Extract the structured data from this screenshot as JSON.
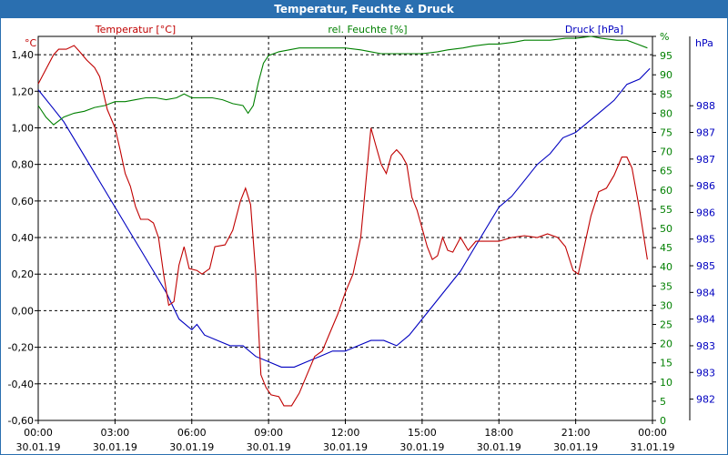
{
  "chart_data": {
    "type": "line",
    "title": "Temperatur, Feuchte & Druck",
    "colors": {
      "temp": "#c00000",
      "hum": "#008000",
      "press": "#0000c0",
      "titlebar": "#2a6fb0",
      "grid": "#000000"
    },
    "series": [
      {
        "key": "temp",
        "name": "Temperatur [°C]",
        "unit_label": "°C",
        "points": [
          [
            0,
            1.24
          ],
          [
            0.3,
            1.32
          ],
          [
            0.6,
            1.4
          ],
          [
            0.8,
            1.43
          ],
          [
            1.1,
            1.43
          ],
          [
            1.4,
            1.45
          ],
          [
            1.6,
            1.42
          ],
          [
            1.9,
            1.37
          ],
          [
            2.2,
            1.33
          ],
          [
            2.4,
            1.28
          ],
          [
            2.7,
            1.1
          ],
          [
            3.0,
            1.0
          ],
          [
            3.2,
            0.88
          ],
          [
            3.4,
            0.75
          ],
          [
            3.6,
            0.68
          ],
          [
            3.8,
            0.57
          ],
          [
            4.0,
            0.5
          ],
          [
            4.3,
            0.5
          ],
          [
            4.5,
            0.48
          ],
          [
            4.7,
            0.4
          ],
          [
            4.9,
            0.2
          ],
          [
            5.1,
            0.03
          ],
          [
            5.3,
            0.05
          ],
          [
            5.5,
            0.25
          ],
          [
            5.7,
            0.35
          ],
          [
            5.9,
            0.23
          ],
          [
            6.2,
            0.22
          ],
          [
            6.4,
            0.2
          ],
          [
            6.7,
            0.23
          ],
          [
            6.9,
            0.35
          ],
          [
            7.3,
            0.36
          ],
          [
            7.6,
            0.44
          ],
          [
            7.9,
            0.6
          ],
          [
            8.1,
            0.67
          ],
          [
            8.3,
            0.58
          ],
          [
            8.5,
            0.2
          ],
          [
            8.7,
            -0.35
          ],
          [
            8.9,
            -0.42
          ],
          [
            9.1,
            -0.46
          ],
          [
            9.4,
            -0.47
          ],
          [
            9.6,
            -0.52
          ],
          [
            9.9,
            -0.52
          ],
          [
            10.2,
            -0.45
          ],
          [
            10.5,
            -0.35
          ],
          [
            10.8,
            -0.25
          ],
          [
            11.1,
            -0.22
          ],
          [
            11.4,
            -0.12
          ],
          [
            11.7,
            -0.02
          ],
          [
            12.0,
            0.1
          ],
          [
            12.3,
            0.2
          ],
          [
            12.6,
            0.4
          ],
          [
            12.8,
            0.7
          ],
          [
            13.0,
            1.0
          ],
          [
            13.2,
            0.9
          ],
          [
            13.4,
            0.8
          ],
          [
            13.6,
            0.75
          ],
          [
            13.8,
            0.85
          ],
          [
            14.0,
            0.88
          ],
          [
            14.2,
            0.85
          ],
          [
            14.4,
            0.8
          ],
          [
            14.6,
            0.62
          ],
          [
            14.8,
            0.55
          ],
          [
            15.0,
            0.45
          ],
          [
            15.2,
            0.35
          ],
          [
            15.4,
            0.28
          ],
          [
            15.6,
            0.3
          ],
          [
            15.8,
            0.4
          ],
          [
            16.0,
            0.33
          ],
          [
            16.2,
            0.32
          ],
          [
            16.5,
            0.4
          ],
          [
            16.8,
            0.33
          ],
          [
            17.1,
            0.38
          ],
          [
            17.4,
            0.38
          ],
          [
            17.7,
            0.38
          ],
          [
            18.0,
            0.38
          ],
          [
            18.5,
            0.4
          ],
          [
            19.0,
            0.41
          ],
          [
            19.5,
            0.4
          ],
          [
            19.9,
            0.42
          ],
          [
            20.3,
            0.4
          ],
          [
            20.6,
            0.35
          ],
          [
            20.9,
            0.22
          ],
          [
            21.1,
            0.2
          ],
          [
            21.3,
            0.33
          ],
          [
            21.6,
            0.52
          ],
          [
            21.9,
            0.65
          ],
          [
            22.2,
            0.67
          ],
          [
            22.5,
            0.74
          ],
          [
            22.8,
            0.84
          ],
          [
            23.0,
            0.84
          ],
          [
            23.2,
            0.78
          ],
          [
            23.5,
            0.55
          ],
          [
            23.8,
            0.28
          ]
        ],
        "ylim": [
          -0.6,
          1.5
        ],
        "ticks": [
          -0.6,
          -0.4,
          -0.2,
          0,
          0.2,
          0.4,
          0.6,
          0.8,
          1.0,
          1.2,
          1.4
        ],
        "tick_labels": [
          "-0,60",
          "-0,40",
          "-0,20",
          "0,00",
          "0,20",
          "0,40",
          "0,60",
          "0,80",
          "1,00",
          "1,20",
          "1,40"
        ]
      },
      {
        "key": "hum",
        "name": "rel. Feuchte [%]",
        "unit_label": "%",
        "points": [
          [
            0,
            82
          ],
          [
            0.3,
            79
          ],
          [
            0.6,
            77
          ],
          [
            1.0,
            79
          ],
          [
            1.4,
            80
          ],
          [
            1.8,
            80.5
          ],
          [
            2.2,
            81.5
          ],
          [
            2.6,
            82
          ],
          [
            3.0,
            83
          ],
          [
            3.4,
            83
          ],
          [
            3.8,
            83.5
          ],
          [
            4.2,
            84
          ],
          [
            4.6,
            84
          ],
          [
            5.0,
            83.5
          ],
          [
            5.4,
            84
          ],
          [
            5.7,
            85
          ],
          [
            6.0,
            84
          ],
          [
            6.4,
            84
          ],
          [
            6.8,
            84
          ],
          [
            7.2,
            83.5
          ],
          [
            7.6,
            82.5
          ],
          [
            8.0,
            82
          ],
          [
            8.2,
            80
          ],
          [
            8.4,
            82
          ],
          [
            8.6,
            88
          ],
          [
            8.8,
            93
          ],
          [
            9.0,
            95
          ],
          [
            9.4,
            96
          ],
          [
            9.8,
            96.5
          ],
          [
            10.2,
            97
          ],
          [
            10.6,
            97
          ],
          [
            11.0,
            97
          ],
          [
            11.6,
            97
          ],
          [
            12.0,
            97
          ],
          [
            12.6,
            96.5
          ],
          [
            13.0,
            96
          ],
          [
            13.4,
            95.5
          ],
          [
            14.0,
            95.5
          ],
          [
            14.6,
            95.5
          ],
          [
            15.0,
            95.5
          ],
          [
            15.6,
            96
          ],
          [
            16.0,
            96.5
          ],
          [
            16.6,
            97
          ],
          [
            17.0,
            97.5
          ],
          [
            17.6,
            98
          ],
          [
            18.0,
            98
          ],
          [
            18.6,
            98.5
          ],
          [
            19.0,
            99
          ],
          [
            19.6,
            99
          ],
          [
            20.0,
            99
          ],
          [
            20.6,
            99.5
          ],
          [
            21.0,
            99.5
          ],
          [
            21.6,
            100
          ],
          [
            22.0,
            99.5
          ],
          [
            22.6,
            99
          ],
          [
            23.0,
            99
          ],
          [
            23.4,
            98
          ],
          [
            23.8,
            97
          ]
        ],
        "ylim": [
          0,
          100
        ],
        "ticks": [
          0,
          5,
          10,
          15,
          20,
          25,
          30,
          35,
          40,
          45,
          50,
          55,
          60,
          65,
          70,
          75,
          80,
          85,
          90,
          95,
          100
        ],
        "tick_labels": [
          "0",
          "5",
          "10",
          "15",
          "20",
          "25",
          "30",
          "35",
          "40",
          "45",
          "50",
          "55",
          "60",
          "65",
          "70",
          "75",
          "80",
          "85",
          "90",
          "95",
          "%"
        ]
      },
      {
        "key": "press",
        "name": "Druck [hPa]",
        "unit_label": "hPa",
        "points": [
          [
            0,
            987.6
          ],
          [
            0.5,
            987.3
          ],
          [
            1.0,
            987.0
          ],
          [
            1.5,
            986.6
          ],
          [
            2.0,
            986.2
          ],
          [
            2.5,
            985.8
          ],
          [
            3.0,
            985.4
          ],
          [
            3.5,
            985.0
          ],
          [
            4.0,
            984.6
          ],
          [
            4.5,
            984.2
          ],
          [
            5.0,
            983.8
          ],
          [
            5.5,
            983.3
          ],
          [
            6.0,
            983.1
          ],
          [
            6.2,
            983.2
          ],
          [
            6.5,
            983.0
          ],
          [
            7.0,
            982.9
          ],
          [
            7.5,
            982.8
          ],
          [
            8.0,
            982.8
          ],
          [
            8.5,
            982.6
          ],
          [
            9.0,
            982.5
          ],
          [
            9.5,
            982.4
          ],
          [
            10.0,
            982.4
          ],
          [
            10.5,
            982.5
          ],
          [
            11.0,
            982.6
          ],
          [
            11.5,
            982.7
          ],
          [
            12.0,
            982.7
          ],
          [
            12.5,
            982.8
          ],
          [
            13.0,
            982.9
          ],
          [
            13.5,
            982.9
          ],
          [
            14.0,
            982.8
          ],
          [
            14.5,
            983.0
          ],
          [
            15.0,
            983.3
          ],
          [
            15.5,
            983.6
          ],
          [
            16.0,
            983.9
          ],
          [
            16.5,
            984.2
          ],
          [
            17.0,
            984.6
          ],
          [
            17.5,
            985.0
          ],
          [
            18.0,
            985.4
          ],
          [
            18.5,
            985.6
          ],
          [
            19.0,
            985.9
          ],
          [
            19.5,
            986.2
          ],
          [
            20.0,
            986.4
          ],
          [
            20.5,
            986.7
          ],
          [
            21.0,
            986.8
          ],
          [
            21.5,
            987.0
          ],
          [
            22.0,
            987.2
          ],
          [
            22.5,
            987.4
          ],
          [
            23.0,
            987.7
          ],
          [
            23.5,
            987.8
          ],
          [
            23.9,
            988.0
          ]
        ],
        "ylim": [
          981.4,
          988.6
        ],
        "ticks": [
          981.8,
          982.3,
          982.8,
          983.3,
          983.8,
          984.3,
          984.8,
          985.3,
          985.8,
          986.3,
          986.8,
          987.3,
          987.8
        ],
        "tick_labels": [
          "982",
          "983",
          "983",
          "984",
          "984",
          "985",
          "985",
          "986",
          "986",
          "987",
          "987",
          "988"
        ],
        "top_unit": "hPa"
      }
    ],
    "xlim": [
      0,
      24
    ],
    "x_ticks": [
      {
        "x": 0,
        "time": "00:00",
        "date": "30.01.19"
      },
      {
        "x": 3,
        "time": "03:00",
        "date": "30.01.19"
      },
      {
        "x": 6,
        "time": "06:00",
        "date": "30.01.19"
      },
      {
        "x": 9,
        "time": "09:00",
        "date": "30.01.19"
      },
      {
        "x": 12,
        "time": "12:00",
        "date": "30.01.19"
      },
      {
        "x": 15,
        "time": "15:00",
        "date": "30.01.19"
      },
      {
        "x": 18,
        "time": "18:00",
        "date": "30.01.19"
      },
      {
        "x": 21,
        "time": "21:00",
        "date": "30.01.19"
      },
      {
        "x": 24,
        "time": "00:00",
        "date": "31.01.19"
      }
    ],
    "grid": true
  }
}
